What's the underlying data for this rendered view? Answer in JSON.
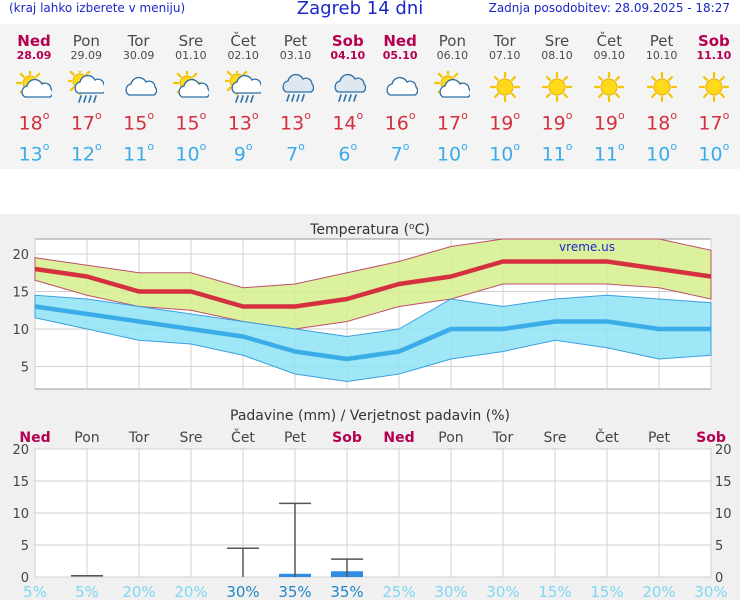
{
  "header": {
    "menu_hint": "(kraj lahko izberete v meniju)",
    "title": "Zagreb 14 dni",
    "updated": "Zadnja posodobitev: 28.09.2025 - 18:27"
  },
  "days": [
    {
      "name": "Ned",
      "date": "28.09",
      "weekend": true,
      "icon": "sun-cloud-icon",
      "max": "18",
      "min": "13"
    },
    {
      "name": "Pon",
      "date": "29.09",
      "weekend": false,
      "icon": "sun-cloud-rain-icon",
      "max": "17",
      "min": "12"
    },
    {
      "name": "Tor",
      "date": "30.09",
      "weekend": false,
      "icon": "cloud-icon",
      "max": "15",
      "min": "11"
    },
    {
      "name": "Sre",
      "date": "01.10",
      "weekend": false,
      "icon": "sun-cloud-icon",
      "max": "15",
      "min": "10"
    },
    {
      "name": "Čet",
      "date": "02.10",
      "weekend": false,
      "icon": "sun-cloud-rain-icon",
      "max": "13",
      "min": "9"
    },
    {
      "name": "Pet",
      "date": "03.10",
      "weekend": false,
      "icon": "cloud-rain-icon",
      "max": "13",
      "min": "7"
    },
    {
      "name": "Sob",
      "date": "04.10",
      "weekend": true,
      "icon": "cloud-rain-icon",
      "max": "14",
      "min": "6"
    },
    {
      "name": "Ned",
      "date": "05.10",
      "weekend": true,
      "icon": "cloud-icon",
      "max": "16",
      "min": "7"
    },
    {
      "name": "Pon",
      "date": "06.10",
      "weekend": false,
      "icon": "sun-cloud-icon",
      "max": "17",
      "min": "10"
    },
    {
      "name": "Tor",
      "date": "07.10",
      "weekend": false,
      "icon": "sun-icon",
      "max": "19",
      "min": "10"
    },
    {
      "name": "Sre",
      "date": "08.10",
      "weekend": false,
      "icon": "sun-icon",
      "max": "19",
      "min": "11"
    },
    {
      "name": "Čet",
      "date": "09.10",
      "weekend": false,
      "icon": "sun-icon",
      "max": "19",
      "min": "11"
    },
    {
      "name": "Pet",
      "date": "10.10",
      "weekend": false,
      "icon": "sun-icon",
      "max": "18",
      "min": "10"
    },
    {
      "name": "Sob",
      "date": "11.10",
      "weekend": true,
      "icon": "sun-icon",
      "max": "17",
      "min": "10"
    }
  ],
  "colors": {
    "max": "#d4303f",
    "min": "#3aace8",
    "weekend": "#b5004f",
    "band_max": "#d6ee8c",
    "band_min": "#8ee3f4",
    "precip_bar": "#2f8de4",
    "prob_text": "#7fd6f4"
  },
  "chart_data": [
    {
      "type": "line",
      "title": "Temperatura (",
      "title_unit": "C)",
      "watermark": "vreme.us",
      "x": [
        "28.09",
        "29.09",
        "30.09",
        "01.10",
        "02.10",
        "03.10",
        "04.10",
        "05.10",
        "06.10",
        "07.10",
        "08.10",
        "09.10",
        "10.10",
        "11.10"
      ],
      "ylim": [
        2,
        22
      ],
      "yticks": [
        5,
        10,
        15,
        20
      ],
      "grid": true,
      "series": [
        {
          "key": "max",
          "values": [
            18,
            17,
            15,
            15,
            13,
            13,
            14,
            16,
            17,
            19,
            19,
            19,
            18,
            17
          ],
          "band_low": [
            16.5,
            14.5,
            13,
            12.5,
            11,
            10,
            11,
            13,
            14,
            16,
            16,
            16,
            15.5,
            14
          ],
          "band_high": [
            19.5,
            18.5,
            17.5,
            17.5,
            15.5,
            16,
            17.5,
            19,
            21,
            22,
            22,
            22,
            22,
            20.5
          ]
        },
        {
          "key": "min",
          "values": [
            13,
            12,
            11,
            10,
            9,
            7,
            6,
            7,
            10,
            10,
            11,
            11,
            10,
            10
          ],
          "band_low": [
            11.5,
            10,
            8.5,
            8,
            6.5,
            4,
            3,
            4,
            6,
            7,
            8.5,
            7.5,
            6,
            6.5
          ],
          "band_high": [
            14.5,
            14,
            13,
            12,
            11,
            10,
            9,
            10,
            14,
            13,
            14,
            14.5,
            14,
            13.5
          ]
        }
      ]
    },
    {
      "type": "bar",
      "title": "Padavine (mm) / Verjetnost padavin (%)",
      "categories": [
        "Ned",
        "Pon",
        "Tor",
        "Sre",
        "Čet",
        "Pet",
        "Sob",
        "Ned",
        "Pon",
        "Tor",
        "Sre",
        "Čet",
        "Pet",
        "Sob"
      ],
      "weekend": [
        true,
        false,
        false,
        false,
        false,
        false,
        true,
        true,
        false,
        false,
        false,
        false,
        false,
        true
      ],
      "ylim": [
        0,
        20
      ],
      "yticks": [
        0,
        5,
        10,
        15,
        20
      ],
      "values": [
        0,
        0,
        0,
        0,
        0,
        0.5,
        0.9,
        0,
        0,
        0,
        0,
        0,
        0,
        0
      ],
      "error_high": [
        0,
        0,
        0,
        0,
        4.5,
        11.5,
        2.8,
        0,
        0,
        0,
        0,
        0,
        0,
        0
      ],
      "probability": [
        "5%",
        "5%",
        "20%",
        "20%",
        "30%",
        "35%",
        "35%",
        "25%",
        "30%",
        "30%",
        "15%",
        "15%",
        "20%",
        "30%"
      ],
      "prob_highlight": [
        false,
        false,
        false,
        false,
        true,
        true,
        true,
        false,
        false,
        false,
        false,
        false,
        false,
        false
      ],
      "grid": true
    }
  ]
}
